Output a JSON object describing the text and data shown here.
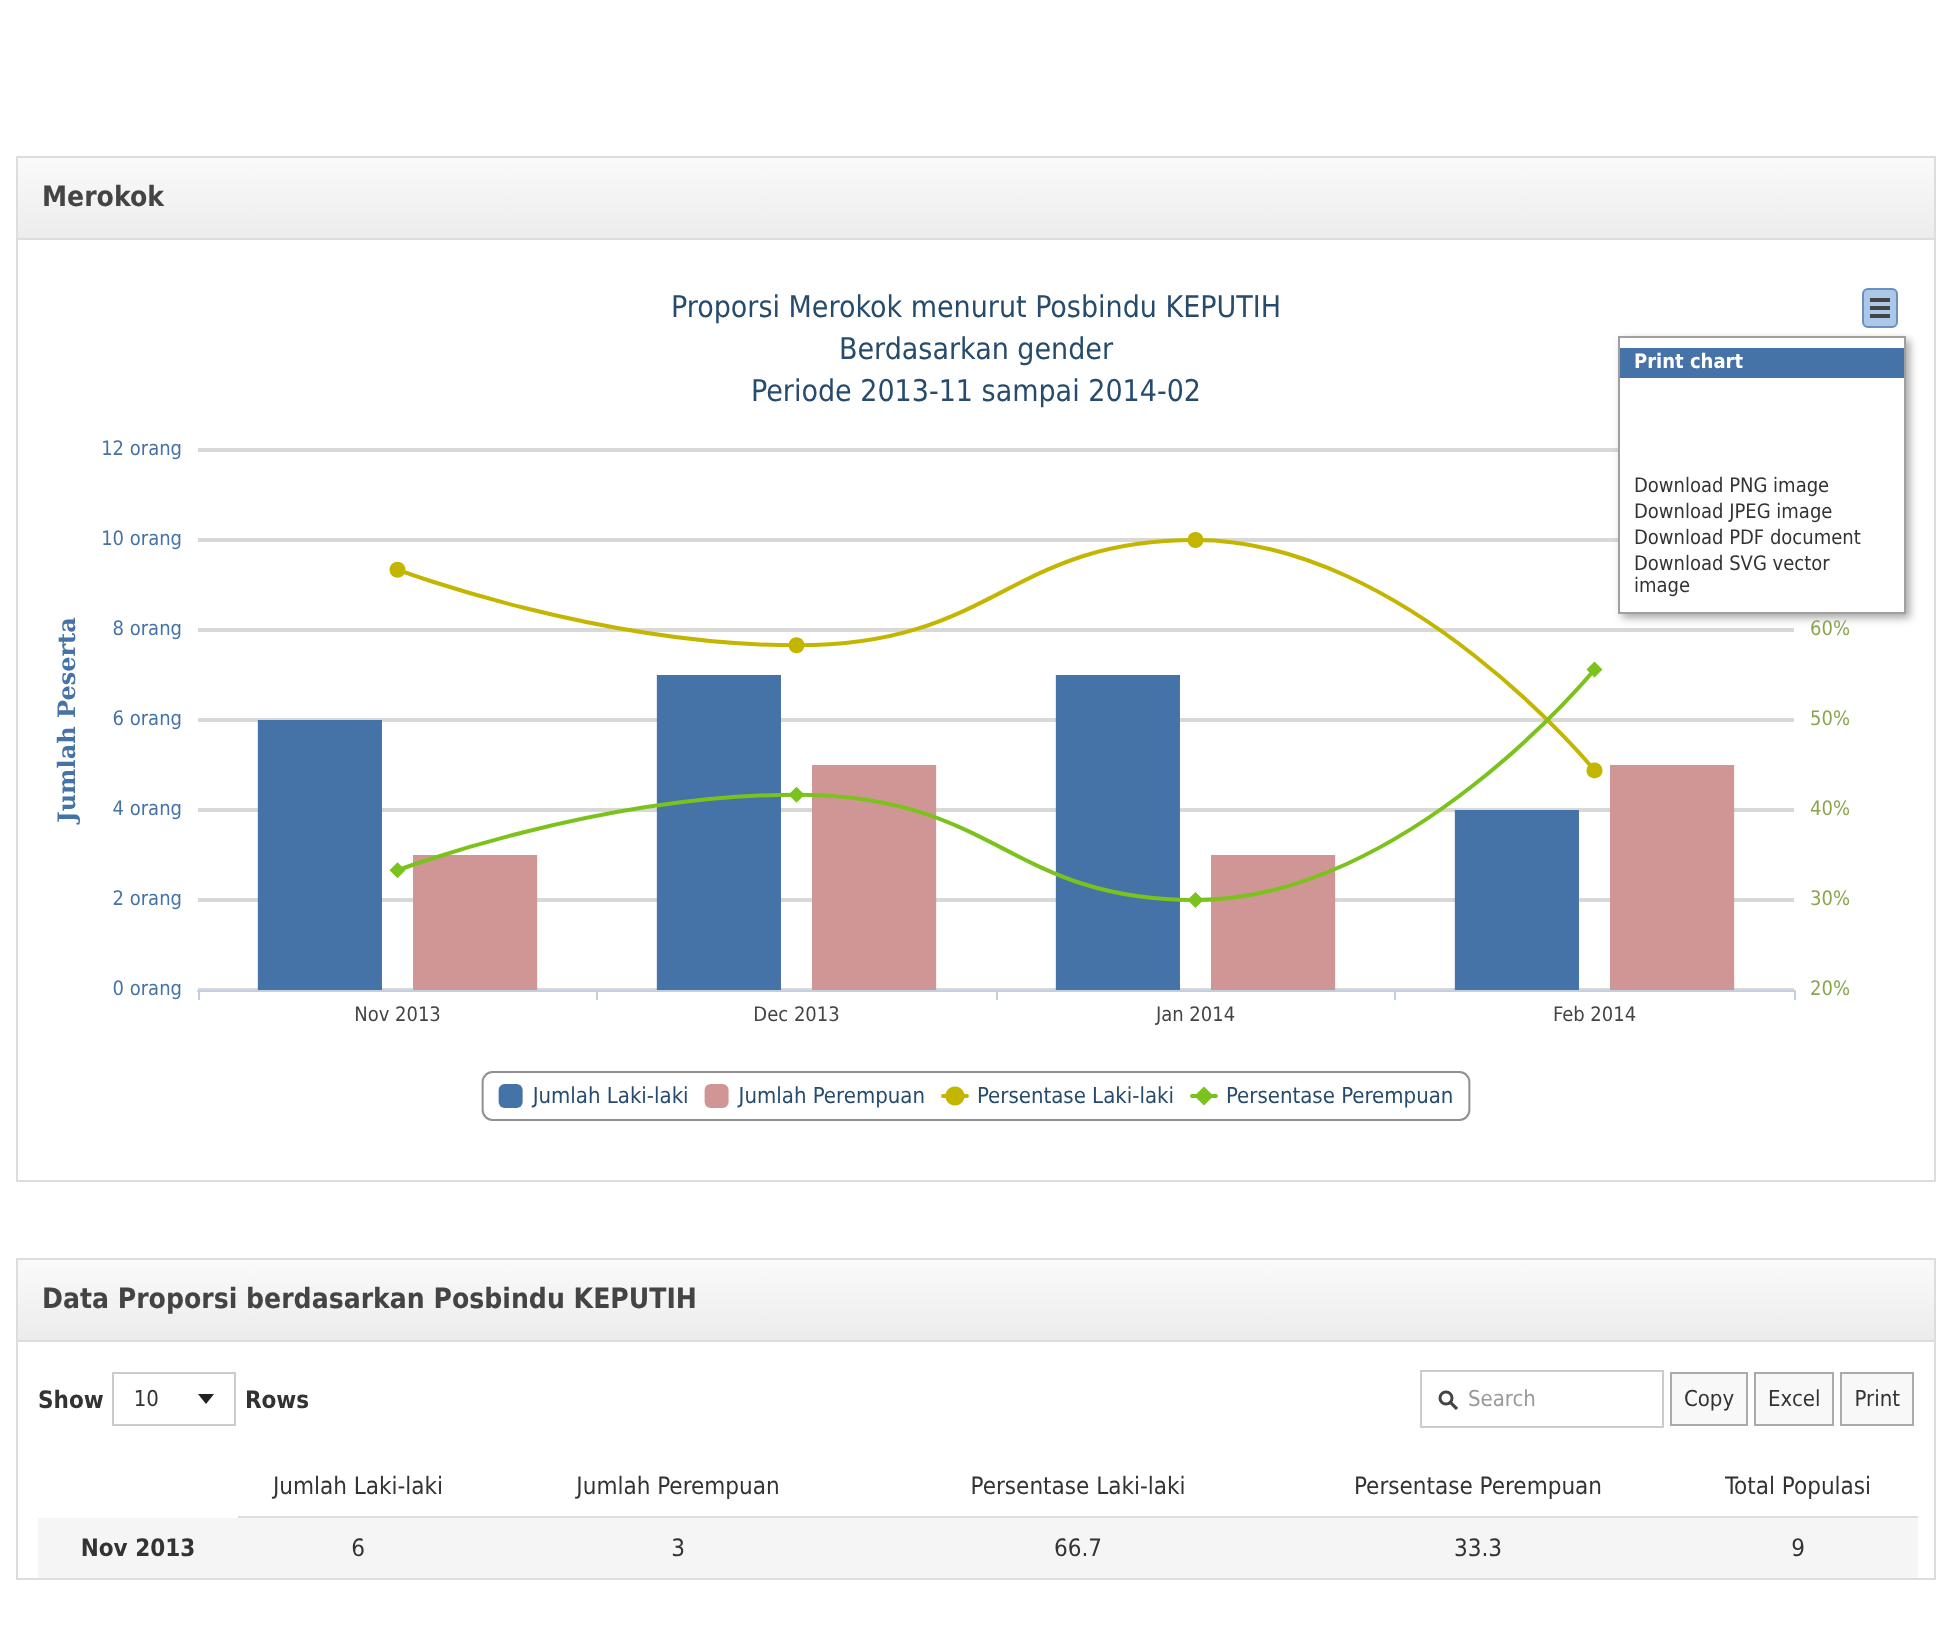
{
  "chart_data": {
    "type": "bar",
    "title": "Proporsi Merokok menurut Posbindu KEPUTIH\nBerdasarkan gender\nPeriode 2013-11 sampai 2014-02",
    "ylabel": "Jumlah Peserta",
    "categories": [
      "Nov 2013",
      "Dec 2013",
      "Jan 2014",
      "Feb 2014"
    ],
    "series": [
      {
        "name": "Jumlah Laki-laki",
        "color": "#4572a7",
        "values": [
          6,
          7,
          7,
          4
        ]
      },
      {
        "name": "Jumlah Perempuan",
        "color": "#d09696",
        "values": [
          3,
          5,
          3,
          5
        ]
      },
      {
        "name": "Persentase Laki-laki",
        "type": "line",
        "axis": "y2",
        "marker": "circle",
        "color": "#c4b500",
        "values": [
          66.7,
          58.3,
          70,
          44.4
        ]
      },
      {
        "name": "Persentase Perempuan",
        "type": "line",
        "axis": "y2",
        "marker": "diamond",
        "color": "#7cc21c",
        "values": [
          33.3,
          41.7,
          30,
          55.6
        ]
      }
    ],
    "ylim": [
      0,
      12
    ],
    "yticks": [
      {
        "value": 0,
        "label": "0 orang"
      },
      {
        "value": 2,
        "label": "2 orang"
      },
      {
        "value": 4,
        "label": "4 orang"
      },
      {
        "value": 6,
        "label": "6 orang"
      },
      {
        "value": 8,
        "label": "8 orang"
      },
      {
        "value": 10,
        "label": "10 orang"
      },
      {
        "value": 12,
        "label": "12 orang"
      }
    ],
    "y2lim": [
      20,
      80
    ],
    "y2ticks": [
      {
        "value": 20,
        "label": "20%"
      },
      {
        "value": 30,
        "label": "30%"
      },
      {
        "value": 40,
        "label": "40%"
      },
      {
        "value": 50,
        "label": "50%"
      },
      {
        "value": 60,
        "label": "60%"
      }
    ],
    "grid": "y",
    "legend": "bottom",
    "annotations": [
      "Merokok",
      "Print chart",
      "Download PNG image",
      "Download JPEG image",
      "Download PDF document",
      "Download SVG vector image",
      "Data Proporsi berdasarkan Posbindu KEPUTIH",
      "Show",
      "10",
      "Rows",
      "Search",
      "Copy",
      "Excel",
      "Print",
      "Jumlah Laki-laki",
      "Jumlah Perempuan",
      "Persentase Laki-laki",
      "Persentase Perempuan",
      "Total Populasi",
      "Nov 2013",
      "6",
      "3",
      "66.7",
      "33.3",
      "9"
    ]
  }
}
